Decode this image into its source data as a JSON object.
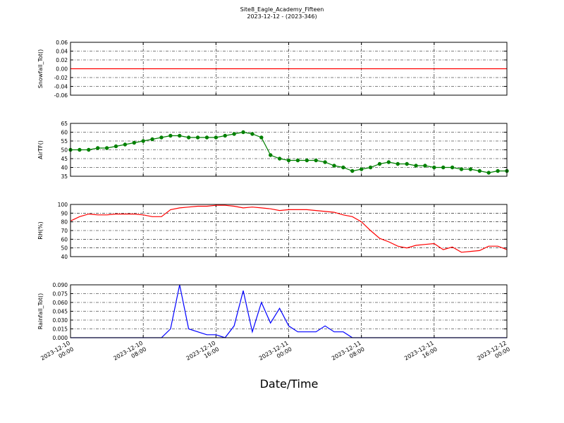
{
  "chart_data": [
    {
      "type": "line",
      "title": "Site8_Eagle_Academy_Fifteen",
      "subtitle": "2023-12-12 - (2023-346)",
      "ylabel": "Snowfall_Tot()",
      "color": "#ff0000",
      "x": [
        "2023-12-10 00:00",
        "2023-12-12 00:00"
      ],
      "values": [
        0,
        0
      ],
      "ylim": [
        -0.06,
        0.06
      ],
      "yticks": [
        -0.06,
        -0.04,
        -0.02,
        {
          "value": 0,
          "label": "0.00"
        },
        0.02,
        0.04,
        0.06
      ],
      "grid": true
    },
    {
      "type": "line",
      "ylabel": "AirTF()",
      "color": "#008000",
      "marker": "o",
      "x": [
        "2023-12-10 00:00",
        "2023-12-10 01:00",
        "2023-12-10 02:00",
        "2023-12-10 03:00",
        "2023-12-10 04:00",
        "2023-12-10 05:00",
        "2023-12-10 06:00",
        "2023-12-10 07:00",
        "2023-12-10 08:00",
        "2023-12-10 09:00",
        "2023-12-10 10:00",
        "2023-12-10 11:00",
        "2023-12-10 12:00",
        "2023-12-10 13:00",
        "2023-12-10 14:00",
        "2023-12-10 15:00",
        "2023-12-10 16:00",
        "2023-12-10 17:00",
        "2023-12-10 18:00",
        "2023-12-10 19:00",
        "2023-12-10 20:00",
        "2023-12-10 21:00",
        "2023-12-10 22:00",
        "2023-12-10 23:00",
        "2023-12-11 00:00",
        "2023-12-11 01:00",
        "2023-12-11 02:00",
        "2023-12-11 03:00",
        "2023-12-11 04:00",
        "2023-12-11 05:00",
        "2023-12-11 06:00",
        "2023-12-11 07:00",
        "2023-12-11 08:00",
        "2023-12-11 09:00",
        "2023-12-11 10:00",
        "2023-12-11 11:00",
        "2023-12-11 12:00",
        "2023-12-11 13:00",
        "2023-12-11 14:00",
        "2023-12-11 15:00",
        "2023-12-11 16:00",
        "2023-12-11 17:00",
        "2023-12-11 18:00",
        "2023-12-11 19:00",
        "2023-12-11 20:00",
        "2023-12-11 21:00",
        "2023-12-11 22:00",
        "2023-12-11 23:00",
        "2023-12-12 00:00"
      ],
      "values": [
        50,
        50,
        50,
        51,
        51,
        52,
        53,
        54,
        55,
        56,
        57,
        58,
        58,
        57,
        57,
        57,
        57,
        58,
        59,
        60,
        59,
        57,
        47,
        45,
        44,
        44,
        44,
        44,
        43,
        41,
        40,
        38,
        39,
        40,
        42,
        43,
        42,
        42,
        41,
        41,
        40,
        40,
        40,
        39,
        39,
        38,
        37,
        38,
        38
      ],
      "ylim": [
        35,
        65
      ],
      "yticks": [
        35,
        40,
        45,
        50,
        55,
        60,
        65
      ],
      "grid": true
    },
    {
      "type": "line",
      "ylabel": "RH(%)",
      "color": "#ff0000",
      "x": [
        "2023-12-10 00:00",
        "2023-12-10 01:00",
        "2023-12-10 02:00",
        "2023-12-10 03:00",
        "2023-12-10 04:00",
        "2023-12-10 05:00",
        "2023-12-10 06:00",
        "2023-12-10 07:00",
        "2023-12-10 08:00",
        "2023-12-10 09:00",
        "2023-12-10 10:00",
        "2023-12-10 11:00",
        "2023-12-10 12:00",
        "2023-12-10 13:00",
        "2023-12-10 14:00",
        "2023-12-10 15:00",
        "2023-12-10 16:00",
        "2023-12-10 17:00",
        "2023-12-10 18:00",
        "2023-12-10 19:00",
        "2023-12-10 20:00",
        "2023-12-10 21:00",
        "2023-12-10 22:00",
        "2023-12-10 23:00",
        "2023-12-11 00:00",
        "2023-12-11 01:00",
        "2023-12-11 02:00",
        "2023-12-11 03:00",
        "2023-12-11 04:00",
        "2023-12-11 05:00",
        "2023-12-11 06:00",
        "2023-12-11 07:00",
        "2023-12-11 08:00",
        "2023-12-11 09:00",
        "2023-12-11 10:00",
        "2023-12-11 11:00",
        "2023-12-11 12:00",
        "2023-12-11 13:00",
        "2023-12-11 14:00",
        "2023-12-11 15:00",
        "2023-12-11 16:00",
        "2023-12-11 17:00",
        "2023-12-11 18:00",
        "2023-12-11 19:00",
        "2023-12-11 20:00",
        "2023-12-11 21:00",
        "2023-12-11 22:00",
        "2023-12-11 23:00",
        "2023-12-12 00:00"
      ],
      "values": [
        81,
        86,
        89,
        88,
        88,
        89,
        89,
        89,
        88,
        86,
        86,
        94,
        96,
        97,
        98,
        98,
        99,
        99,
        98,
        96,
        97,
        96,
        95,
        93,
        94,
        94,
        94,
        93,
        92,
        91,
        88,
        86,
        80,
        70,
        61,
        57,
        52,
        50,
        53,
        54,
        55,
        48,
        51,
        45,
        46,
        47,
        52,
        52,
        48
      ],
      "ylim": [
        40,
        100
      ],
      "yticks": [
        40,
        50,
        60,
        70,
        80,
        90,
        100
      ],
      "grid": true
    },
    {
      "type": "line",
      "ylabel": "Rainfall_Tot()",
      "xlabel": "Date/Time",
      "color": "#0000ff",
      "x": [
        "2023-12-10 00:00",
        "2023-12-10 01:00",
        "2023-12-10 02:00",
        "2023-12-10 03:00",
        "2023-12-10 04:00",
        "2023-12-10 05:00",
        "2023-12-10 06:00",
        "2023-12-10 07:00",
        "2023-12-10 08:00",
        "2023-12-10 09:00",
        "2023-12-10 10:00",
        "2023-12-10 11:00",
        "2023-12-10 12:00",
        "2023-12-10 13:00",
        "2023-12-10 14:00",
        "2023-12-10 15:00",
        "2023-12-10 16:00",
        "2023-12-10 17:00",
        "2023-12-10 18:00",
        "2023-12-10 19:00",
        "2023-12-10 20:00",
        "2023-12-10 21:00",
        "2023-12-10 22:00",
        "2023-12-10 23:00",
        "2023-12-11 00:00",
        "2023-12-11 01:00",
        "2023-12-11 02:00",
        "2023-12-11 03:00",
        "2023-12-11 04:00",
        "2023-12-11 05:00",
        "2023-12-11 06:00",
        "2023-12-11 07:00",
        "2023-12-11 08:00",
        "2023-12-11 09:00",
        "2023-12-11 10:00",
        "2023-12-11 11:00",
        "2023-12-11 12:00",
        "2023-12-11 13:00",
        "2023-12-11 14:00",
        "2023-12-11 15:00",
        "2023-12-11 16:00",
        "2023-12-11 17:00",
        "2023-12-11 18:00",
        "2023-12-11 19:00",
        "2023-12-11 20:00",
        "2023-12-11 21:00",
        "2023-12-11 22:00",
        "2023-12-11 23:00",
        "2023-12-12 00:00"
      ],
      "values": [
        0,
        0,
        0,
        0,
        0,
        0,
        0,
        0,
        0,
        0,
        0,
        0.015,
        0.09,
        0.015,
        0.01,
        0.005,
        0.005,
        0,
        0.02,
        0.08,
        0.01,
        0.06,
        0.025,
        0.05,
        0.02,
        0.01,
        0.01,
        0.01,
        0.02,
        0.01,
        0.01,
        0,
        0,
        0,
        0,
        0,
        0,
        0,
        0,
        0,
        0,
        0,
        0,
        0,
        0,
        0,
        0,
        0,
        0
      ],
      "ylim": [
        0,
        0.09
      ],
      "yticks": [
        {
          "value": 0,
          "label": "0.000"
        },
        0.015,
        {
          "value": 0.03,
          "label": "0.030"
        },
        0.045,
        {
          "value": 0.06,
          "label": "0.060"
        },
        0.075,
        {
          "value": 0.09,
          "label": "0.090"
        }
      ],
      "xlim": [
        "2023-12-10 00:00",
        "2023-12-12 00:00"
      ],
      "xticks": [
        "2023-12-10 00:00",
        "2023-12-10 08:00",
        "2023-12-10 16:00",
        "2023-12-11 00:00",
        "2023-12-11 08:00",
        "2023-12-11 16:00",
        "2023-12-12 00:00"
      ],
      "grid": true
    }
  ]
}
